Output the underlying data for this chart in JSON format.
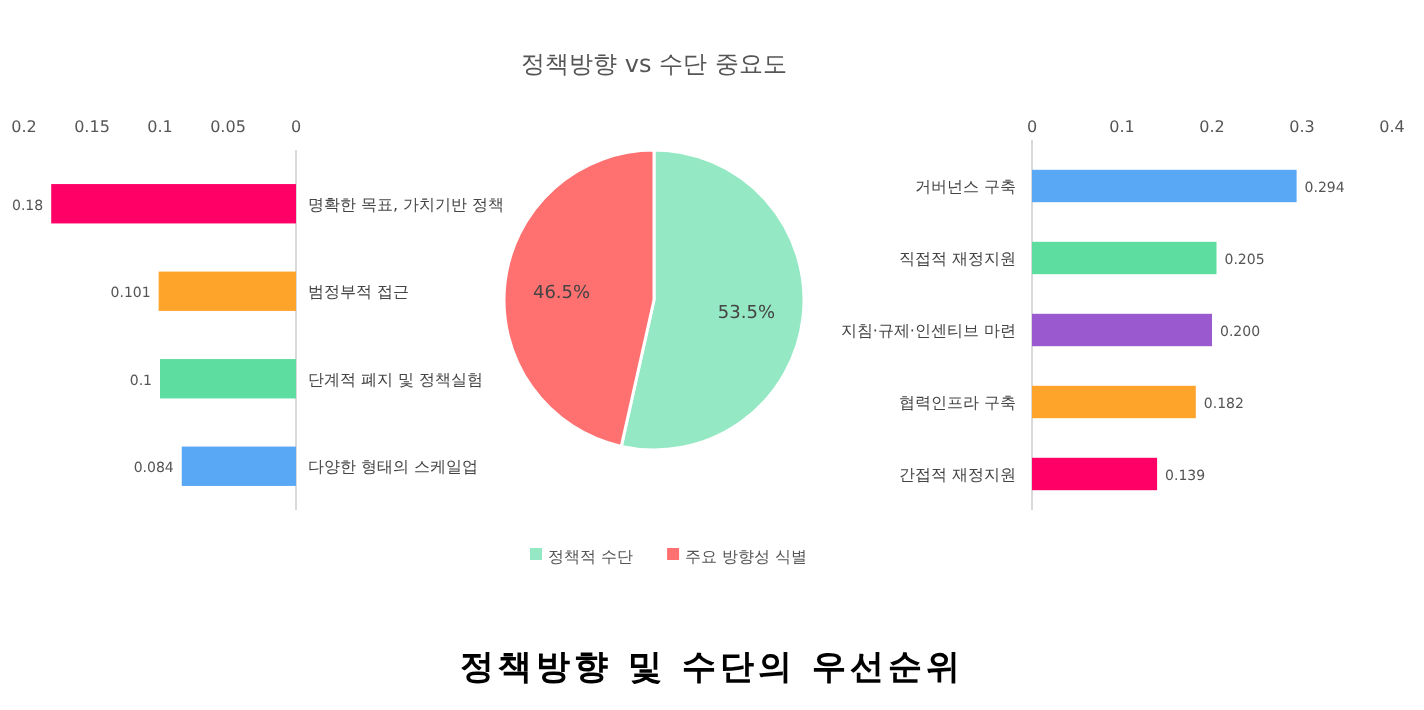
{
  "chart_data": [
    {
      "type": "bar",
      "orientation": "horizontal",
      "categories": [
        "명확한 목표, 가치기반 정책",
        "범정부적 접근",
        "단계적 폐지 및 정책실험",
        "다양한 형태의 스케일업"
      ],
      "values": [
        0.18,
        0.101,
        0.1,
        0.084
      ],
      "colors": [
        "#ff0066",
        "#ffa42b",
        "#5ddea0",
        "#59a8f5"
      ],
      "xlim": [
        0.2,
        0
      ],
      "xticks": [
        0.2,
        0.15,
        0.1,
        0.05,
        0
      ],
      "data_labels": true
    },
    {
      "type": "pie",
      "title": "정책방향 vs 수단 중요도",
      "categories": [
        "정책적 수단",
        "주요 방향성 식별"
      ],
      "values": [
        53.5,
        46.5
      ],
      "colors": [
        "#95e8c4",
        "#ff7070"
      ],
      "value_labels": [
        "53.5%",
        "46.5%"
      ],
      "legend": "bottom",
      "annotations": [
        "정책방향 및 수단의 우선순위"
      ]
    },
    {
      "type": "bar",
      "orientation": "horizontal",
      "categories": [
        "거버넌스 구축",
        "직접적 재정지원",
        "지침·규제·인센티브 마련",
        "협력인프라 구축",
        "간접적 재정지원"
      ],
      "values": [
        0.294,
        0.205,
        0.2,
        0.182,
        0.139
      ],
      "colors": [
        "#59a8f5",
        "#5ddea0",
        "#9b59d0",
        "#ffa42b",
        "#ff0066"
      ],
      "value_labels": [
        "0.294",
        "0.205",
        "0.200",
        "0.182",
        "0.139"
      ],
      "xlim": [
        0,
        0.4
      ],
      "xticks": [
        0,
        0.1,
        0.2,
        0.3,
        0.4
      ]
    }
  ]
}
